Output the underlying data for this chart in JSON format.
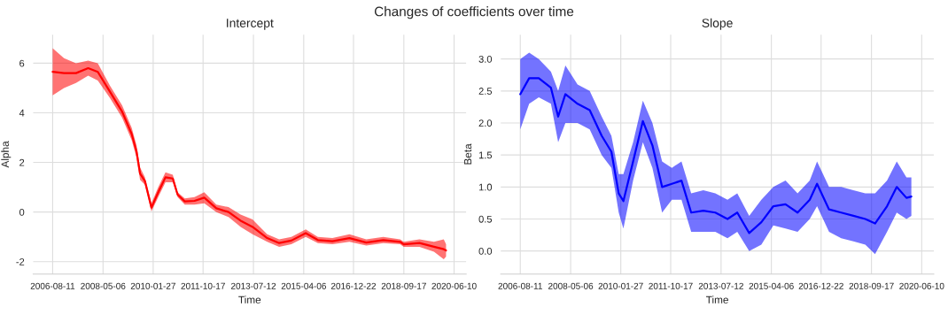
{
  "chart_data": [
    {
      "type": "line",
      "title": "Intercept",
      "xlabel": "Time",
      "ylabel": "Alpha",
      "annotations": [
        "Changes of coefficients over time"
      ],
      "grid": true,
      "legend": false,
      "xlim": [
        "2005-12-09",
        "2020-11-09"
      ],
      "ylim": [
        -2.5,
        7.15
      ],
      "xticks": [
        "2006-08-11",
        "2008-05-06",
        "2010-01-27",
        "2011-10-17",
        "2013-07-12",
        "2015-04-06",
        "2016-12-22",
        "2018-09-17",
        "2020-06-10"
      ],
      "yticks": [
        -2,
        0,
        2,
        4,
        6
      ],
      "x": [
        "2006-08-11",
        "2007-01-01",
        "2007-06-01",
        "2007-11-01",
        "2008-03-01",
        "2008-08-01",
        "2009-01-01",
        "2009-05-01",
        "2009-07-01",
        "2009-08-15",
        "2009-10-15",
        "2010-01-05",
        "2010-04-01",
        "2010-07-01",
        "2010-10-01",
        "2010-12-01",
        "2011-03-01",
        "2011-07-01",
        "2011-11-01",
        "2012-04-01",
        "2012-09-01",
        "2013-02-01",
        "2013-07-01",
        "2014-01-01",
        "2014-06-01",
        "2014-11-01",
        "2015-05-01",
        "2015-10-01",
        "2016-04-01",
        "2016-11-01",
        "2017-06-01",
        "2018-01-01",
        "2018-08-01",
        "2018-09-15",
        "2019-04-01",
        "2019-10-01",
        "2020-02-01",
        "2020-03-01"
      ],
      "series": [
        {
          "color": "#ff0000",
          "values": [
            5.65,
            5.6,
            5.6,
            5.8,
            5.65,
            4.85,
            4.05,
            3.15,
            2.45,
            1.55,
            1.25,
            0.18,
            0.8,
            1.4,
            1.35,
            0.7,
            0.43,
            0.45,
            0.58,
            0.15,
            0.0,
            -0.35,
            -0.6,
            -1.05,
            -1.25,
            -1.15,
            -0.85,
            -1.13,
            -1.18,
            -1.05,
            -1.23,
            -1.13,
            -1.2,
            -1.3,
            -1.25,
            -1.4,
            -1.5,
            -1.55
          ],
          "lower": [
            4.7,
            5.0,
            5.2,
            5.5,
            5.3,
            4.6,
            3.8,
            2.9,
            2.2,
            1.3,
            1.1,
            0.02,
            0.6,
            1.2,
            1.2,
            0.6,
            0.3,
            0.3,
            0.35,
            0.0,
            -0.2,
            -0.6,
            -0.9,
            -1.2,
            -1.4,
            -1.3,
            -1.0,
            -1.25,
            -1.3,
            -1.2,
            -1.35,
            -1.25,
            -1.3,
            -1.4,
            -1.4,
            -1.6,
            -1.9,
            -1.8
          ],
          "upper": [
            6.6,
            6.2,
            6.0,
            6.1,
            6.0,
            5.1,
            4.3,
            3.4,
            2.7,
            1.8,
            1.4,
            0.35,
            1.0,
            1.6,
            1.5,
            0.8,
            0.55,
            0.6,
            0.8,
            0.3,
            0.2,
            -0.1,
            -0.3,
            -0.9,
            -1.1,
            -1.0,
            -0.7,
            -1.0,
            -1.05,
            -0.9,
            -1.1,
            -1.0,
            -1.1,
            -1.2,
            -1.1,
            -1.2,
            -1.1,
            -1.3
          ]
        }
      ]
    },
    {
      "type": "line",
      "title": "Slope",
      "xlabel": "Time",
      "ylabel": "Beta",
      "grid": true,
      "legend": false,
      "xlim": [
        "2005-12-09",
        "2020-11-09"
      ],
      "ylim": [
        -0.36,
        3.38
      ],
      "xticks": [
        "2006-08-11",
        "2008-05-06",
        "2010-01-27",
        "2011-10-17",
        "2013-07-12",
        "2015-04-06",
        "2016-12-22",
        "2018-09-17",
        "2020-06-10"
      ],
      "yticks": [
        {
          "value": 0,
          "label": "0.0"
        },
        0.5,
        {
          "value": 1,
          "label": "1.0"
        },
        1.5,
        {
          "value": 2,
          "label": "2.0"
        },
        2.5,
        {
          "value": 3,
          "label": "3.0"
        }
      ],
      "x": [
        "2006-08-11",
        "2006-12-01",
        "2007-04-01",
        "2007-09-01",
        "2007-12-01",
        "2008-03-01",
        "2008-08-01",
        "2009-01-01",
        "2009-06-01",
        "2009-10-01",
        "2010-01-01",
        "2010-03-01",
        "2010-07-01",
        "2010-11-01",
        "2011-03-01",
        "2011-07-01",
        "2011-11-01",
        "2012-03-01",
        "2012-07-01",
        "2012-12-01",
        "2013-05-01",
        "2013-10-01",
        "2014-02-01",
        "2014-07-01",
        "2014-12-01",
        "2015-05-01",
        "2015-10-01",
        "2016-03-01",
        "2016-08-01",
        "2016-11-01",
        "2017-04-01",
        "2017-09-01",
        "2018-02-01",
        "2018-07-01",
        "2018-11-01",
        "2019-04-01",
        "2019-08-01",
        "2019-12-01",
        "2020-02-01"
      ],
      "series": [
        {
          "color": "#0000ff",
          "values": [
            2.45,
            2.7,
            2.7,
            2.55,
            2.1,
            2.45,
            2.3,
            2.2,
            1.8,
            1.55,
            0.9,
            0.78,
            1.4,
            2.03,
            1.65,
            1.0,
            1.05,
            1.1,
            0.6,
            0.63,
            0.6,
            0.5,
            0.6,
            0.28,
            0.45,
            0.7,
            0.73,
            0.6,
            0.8,
            1.05,
            0.65,
            0.6,
            0.55,
            0.5,
            0.43,
            0.7,
            1.0,
            0.83,
            0.85
          ],
          "lower": [
            1.9,
            2.3,
            2.4,
            2.3,
            1.7,
            2.0,
            2.0,
            1.9,
            1.5,
            1.3,
            0.6,
            0.35,
            1.1,
            1.7,
            1.3,
            0.6,
            0.8,
            0.8,
            0.3,
            0.3,
            0.3,
            0.2,
            0.3,
            0.0,
            0.1,
            0.4,
            0.35,
            0.3,
            0.5,
            0.7,
            0.3,
            0.2,
            0.15,
            0.1,
            -0.05,
            0.3,
            0.6,
            0.5,
            0.55
          ],
          "upper": [
            3.0,
            3.1,
            3.0,
            2.8,
            2.5,
            2.9,
            2.6,
            2.5,
            2.1,
            1.8,
            1.2,
            1.2,
            1.7,
            2.35,
            2.0,
            1.4,
            1.3,
            1.4,
            0.9,
            0.95,
            0.9,
            0.8,
            0.9,
            0.55,
            0.8,
            1.0,
            1.1,
            0.9,
            1.1,
            1.4,
            1.0,
            1.0,
            0.95,
            0.9,
            0.9,
            1.1,
            1.4,
            1.15,
            1.15
          ]
        }
      ]
    }
  ]
}
